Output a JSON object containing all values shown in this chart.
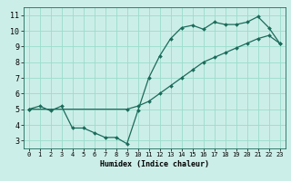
{
  "xlabel": "Humidex (Indice chaleur)",
  "bg_color": "#cceee8",
  "grid_color": "#99ddcc",
  "line_color": "#1a6b5a",
  "xlim": [
    -0.5,
    23.5
  ],
  "ylim": [
    2.5,
    11.5
  ],
  "xticks": [
    0,
    1,
    2,
    3,
    4,
    5,
    6,
    7,
    8,
    9,
    10,
    11,
    12,
    13,
    14,
    15,
    16,
    17,
    18,
    19,
    20,
    21,
    22,
    23
  ],
  "yticks": [
    3,
    4,
    5,
    6,
    7,
    8,
    9,
    10,
    11
  ],
  "series1_x": [
    0,
    1,
    2,
    3,
    4,
    5,
    6,
    7,
    8,
    9,
    10,
    11,
    12,
    13,
    14,
    15,
    16,
    17,
    18,
    19,
    20,
    21,
    22,
    23
  ],
  "series1_y": [
    5.0,
    5.2,
    4.9,
    5.2,
    3.8,
    3.8,
    3.5,
    3.2,
    3.2,
    2.8,
    4.9,
    7.0,
    8.4,
    9.5,
    10.2,
    10.35,
    10.1,
    10.55,
    10.4,
    10.4,
    10.55,
    10.9,
    10.2,
    9.2
  ],
  "series2_x": [
    0,
    9,
    10,
    11,
    12,
    13,
    14,
    15,
    16,
    17,
    18,
    19,
    20,
    21,
    22,
    23
  ],
  "series2_y": [
    5.0,
    5.0,
    5.2,
    5.5,
    6.0,
    6.5,
    7.0,
    7.5,
    8.0,
    8.3,
    8.6,
    8.9,
    9.2,
    9.5,
    9.7,
    9.2
  ]
}
